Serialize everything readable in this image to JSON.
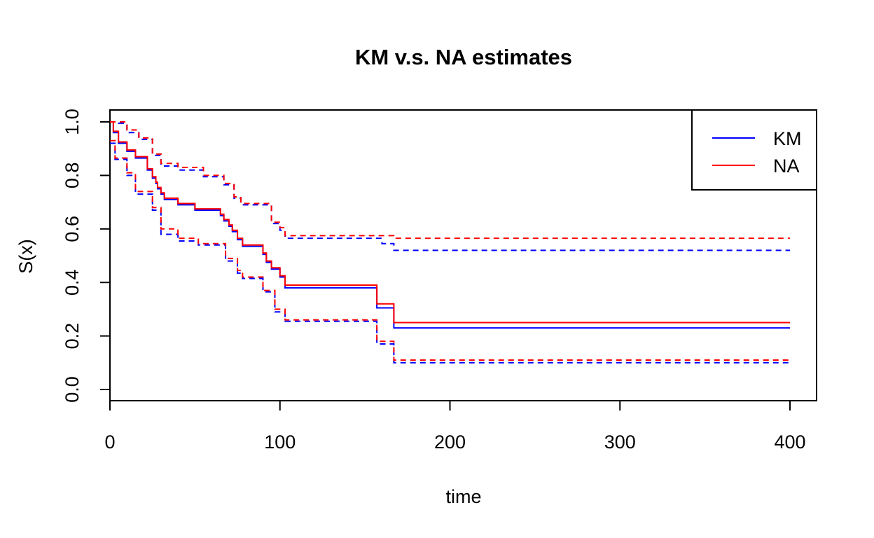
{
  "chart_data": {
    "type": "line",
    "title": "KM v.s. NA estimates",
    "xlabel": "time",
    "ylabel": "S(x)",
    "xlim": [
      0,
      415
    ],
    "ylim": [
      -0.04,
      1.04
    ],
    "x_ticks": [
      0,
      100,
      200,
      300,
      400
    ],
    "x_tick_labels": [
      "0",
      "100",
      "200",
      "300",
      "400"
    ],
    "y_ticks": [
      0.0,
      0.2,
      0.4,
      0.6,
      0.8,
      1.0
    ],
    "y_tick_labels": [
      "0.0",
      "0.2",
      "0.4",
      "0.6",
      "0.8",
      "1.0"
    ],
    "grid": false,
    "legend": {
      "position": "top-right",
      "entries": [
        {
          "label": "KM",
          "color": "#0000ff"
        },
        {
          "label": "NA",
          "color": "#ff0000"
        }
      ]
    },
    "series": [
      {
        "name": "KM",
        "role": "estimate",
        "color": "#0000ff",
        "style": "solid",
        "x": [
          0,
          2,
          5,
          10,
          15,
          22,
          25,
          27,
          28,
          30,
          32,
          40,
          50,
          65,
          67,
          70,
          72,
          75,
          78,
          90,
          92,
          95,
          100,
          103,
          157,
          167,
          400
        ],
        "y": [
          1.0,
          0.96,
          0.92,
          0.89,
          0.865,
          0.82,
          0.79,
          0.77,
          0.75,
          0.73,
          0.71,
          0.69,
          0.67,
          0.65,
          0.63,
          0.61,
          0.59,
          0.56,
          0.535,
          0.505,
          0.475,
          0.45,
          0.42,
          0.38,
          0.305,
          0.23,
          0.23
        ]
      },
      {
        "name": "NA",
        "role": "estimate",
        "color": "#ff0000",
        "style": "solid",
        "x": [
          0,
          2,
          5,
          10,
          15,
          22,
          25,
          27,
          28,
          30,
          32,
          40,
          50,
          65,
          67,
          70,
          72,
          75,
          78,
          90,
          92,
          95,
          100,
          103,
          157,
          167,
          400
        ],
        "y": [
          1.0,
          0.965,
          0.925,
          0.895,
          0.87,
          0.825,
          0.795,
          0.775,
          0.755,
          0.735,
          0.715,
          0.695,
          0.675,
          0.655,
          0.635,
          0.615,
          0.595,
          0.565,
          0.54,
          0.51,
          0.48,
          0.455,
          0.425,
          0.39,
          0.32,
          0.25,
          0.25
        ]
      },
      {
        "name": "",
        "role": "KM upper bound",
        "color": "#0000ff",
        "style": "dashed",
        "x": [
          0,
          5,
          10,
          17,
          25,
          30,
          40,
          55,
          67,
          73,
          77,
          95,
          100,
          103,
          160,
          167,
          400
        ],
        "y": [
          1.0,
          0.995,
          0.96,
          0.935,
          0.875,
          0.835,
          0.82,
          0.795,
          0.765,
          0.715,
          0.69,
          0.62,
          0.595,
          0.565,
          0.545,
          0.52,
          0.52
        ]
      },
      {
        "name": "",
        "role": "NA upper bound",
        "color": "#ff0000",
        "style": "dashed",
        "x": [
          0,
          5,
          10,
          17,
          25,
          30,
          40,
          55,
          67,
          73,
          77,
          95,
          100,
          103,
          160,
          167,
          400
        ],
        "y": [
          1.0,
          1.0,
          0.97,
          0.94,
          0.88,
          0.845,
          0.83,
          0.8,
          0.77,
          0.72,
          0.695,
          0.625,
          0.605,
          0.575,
          0.575,
          0.565,
          0.565
        ]
      },
      {
        "name": "",
        "role": "KM lower bound",
        "color": "#0000ff",
        "style": "dashed",
        "x": [
          0,
          3,
          10,
          15,
          25,
          30,
          40,
          52,
          68,
          75,
          78,
          90,
          97,
          103,
          157,
          167,
          400
        ],
        "y": [
          0.92,
          0.86,
          0.8,
          0.73,
          0.67,
          0.58,
          0.555,
          0.54,
          0.48,
          0.435,
          0.415,
          0.365,
          0.29,
          0.255,
          0.17,
          0.1,
          0.1
        ]
      },
      {
        "name": "",
        "role": "NA lower bound",
        "color": "#ff0000",
        "style": "dashed",
        "x": [
          0,
          3,
          10,
          15,
          25,
          30,
          40,
          52,
          68,
          75,
          78,
          90,
          97,
          103,
          157,
          167,
          400
        ],
        "y": [
          0.93,
          0.865,
          0.81,
          0.74,
          0.68,
          0.6,
          0.565,
          0.545,
          0.49,
          0.445,
          0.42,
          0.37,
          0.3,
          0.26,
          0.18,
          0.11,
          0.11
        ]
      }
    ]
  }
}
